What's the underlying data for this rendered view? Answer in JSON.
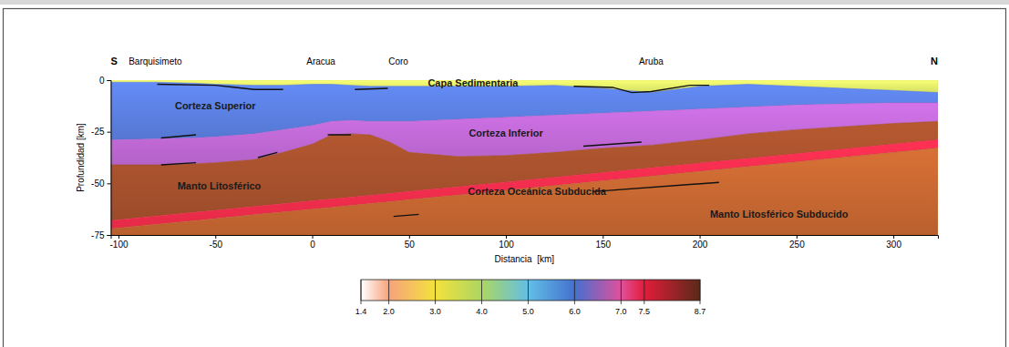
{
  "chart_data": {
    "type": "area",
    "stacked": true,
    "x_label": "Distancia  [km]",
    "y_label": "Profundidad [km]",
    "xlim": [
      -104,
      323
    ],
    "ylim": [
      -75,
      0
    ],
    "xticks": [
      -100,
      -50,
      0,
      50,
      100,
      150,
      200,
      250,
      300
    ],
    "yticks": [
      0,
      -25,
      -50,
      -75
    ],
    "x": [
      -104,
      -80,
      -60,
      -50,
      -30,
      -15,
      0,
      10,
      20,
      30,
      40,
      50,
      75,
      100,
      125,
      150,
      175,
      200,
      225,
      250,
      275,
      300,
      323
    ],
    "series": [
      {
        "color": "#d4df63",
        "values": [
          -1,
          -1,
          -1.5,
          -2,
          -2.5,
          -2.5,
          -2,
          -2,
          -2.5,
          -3,
          -3,
          -3,
          -3,
          -3,
          -2.5,
          -4,
          -6,
          -3,
          -2,
          -3,
          -4,
          -5,
          -6
        ]
      },
      {
        "color": "#5577d2",
        "values": [
          -28,
          -27.5,
          -26.5,
          -25.5,
          -23.5,
          -21.5,
          -20,
          -18,
          -17,
          -17,
          -17,
          -17,
          -16,
          -15,
          -14.5,
          -12,
          -9,
          -11,
          -11,
          -9,
          -7.5,
          -6,
          -5
        ]
      },
      {
        "color": "#b462c8",
        "values": [
          -12,
          -12.5,
          -12.5,
          -12.5,
          -12.5,
          -11,
          -9,
          -6.5,
          -6.5,
          -6.5,
          -10,
          -15,
          -18,
          -18.5,
          -18,
          -17,
          -16.5,
          -15,
          -13,
          -12,
          -11,
          -10,
          -9
        ]
      },
      {
        "color": "#9c4c2a",
        "values": [
          -27,
          -24.8,
          -23.5,
          -23.1,
          -22.7,
          -24.9,
          -27.5,
          -31.1,
          -30.7,
          -29.3,
          -24.9,
          -18.9,
          -14.7,
          -12.9,
          -12.1,
          -11.8,
          -11,
          -11.2,
          -11.9,
          -11.6,
          -10.8,
          -10,
          -8.9
        ]
      },
      {
        "color": "#e62a48",
        "values": [
          -4,
          -4,
          -4,
          -4,
          -4,
          -4,
          -4,
          -4,
          -4,
          -4,
          -4,
          -4,
          -4,
          -4,
          -4,
          -4,
          -4,
          -4,
          -4,
          -4,
          -4,
          -4,
          -4
        ]
      },
      {
        "color": "#b9602e",
        "values": [
          -3,
          -5.2,
          -7,
          -7.9,
          -9.8,
          -11.1,
          -12.5,
          -13.4,
          -14.3,
          -15.2,
          -16.1,
          -17.1,
          -19.3,
          -21.6,
          -23.9,
          -26.2,
          -28.5,
          -30.8,
          -33.1,
          -35.4,
          -37.7,
          -40,
          -42.1
        ]
      }
    ],
    "lines": [
      {
        "x": [
          -80,
          -50,
          -30,
          -15
        ],
        "y": [
          -2,
          -2.5,
          -4.5,
          -4.5
        ]
      },
      {
        "x": [
          22,
          39
        ],
        "y": [
          -4.5,
          -4
        ]
      },
      {
        "x": [
          135,
          155,
          165,
          175,
          195,
          205
        ],
        "y": [
          -3,
          -3.5,
          -6,
          -5.5,
          -2.5,
          -2.5
        ]
      },
      {
        "x": [
          -78,
          -60
        ],
        "y": [
          -28,
          -26.5
        ]
      },
      {
        "x": [
          -78,
          -60
        ],
        "y": [
          -41,
          -40
        ]
      },
      {
        "x": [
          -28,
          -18
        ],
        "y": [
          -37.5,
          -35
        ]
      },
      {
        "x": [
          8,
          20
        ],
        "y": [
          -26.5,
          -26.5
        ]
      },
      {
        "x": [
          140,
          170
        ],
        "y": [
          -32,
          -30
        ]
      },
      {
        "x": [
          145,
          210
        ],
        "y": [
          -54,
          -49.5
        ]
      },
      {
        "x": [
          42,
          55
        ],
        "y": [
          -66,
          -65
        ]
      }
    ],
    "annotations": [
      {
        "text": "Capa Sedimentaria",
        "x": 83,
        "y": -1.8
      },
      {
        "text": "Corteza Superior",
        "x": -50,
        "y": -13
      },
      {
        "text": "Corteza Inferior",
        "x": 100,
        "y": -26
      },
      {
        "text": "Manto Litosférico",
        "x": -48,
        "y": -51.6
      },
      {
        "text": "Corteza Oceánica Subducida",
        "x": 116,
        "y": -54.3
      },
      {
        "text": "Manto Litosférico Subducido",
        "x": 241,
        "y": -65.3
      }
    ],
    "places": [
      {
        "text": "Barquisimeto",
        "x": -81
      },
      {
        "text": "Aracua",
        "x": 4.5
      },
      {
        "text": "Coro",
        "x": 44.5
      },
      {
        "text": "Aruba",
        "x": 175
      }
    ],
    "ends": {
      "left": "S",
      "right": "N"
    },
    "colorbar": {
      "range": [
        1.4,
        8.7
      ],
      "ticks": [
        1.4,
        {
          "value": 2,
          "label": "2.0"
        },
        {
          "value": 3,
          "label": "3.0"
        },
        {
          "value": 4,
          "label": "4.0"
        },
        {
          "value": 5,
          "label": "5.0"
        },
        {
          "value": 6,
          "label": "6.0"
        },
        {
          "value": 7,
          "label": "7.0"
        },
        7.5,
        8.7
      ],
      "colors": [
        "#ffffff",
        "#f7a27c",
        "#f3e23c",
        "#acd662",
        "#62bfe6",
        "#4470cf",
        "#e0509c",
        "#e21c3a",
        "#5a2a18"
      ]
    }
  }
}
